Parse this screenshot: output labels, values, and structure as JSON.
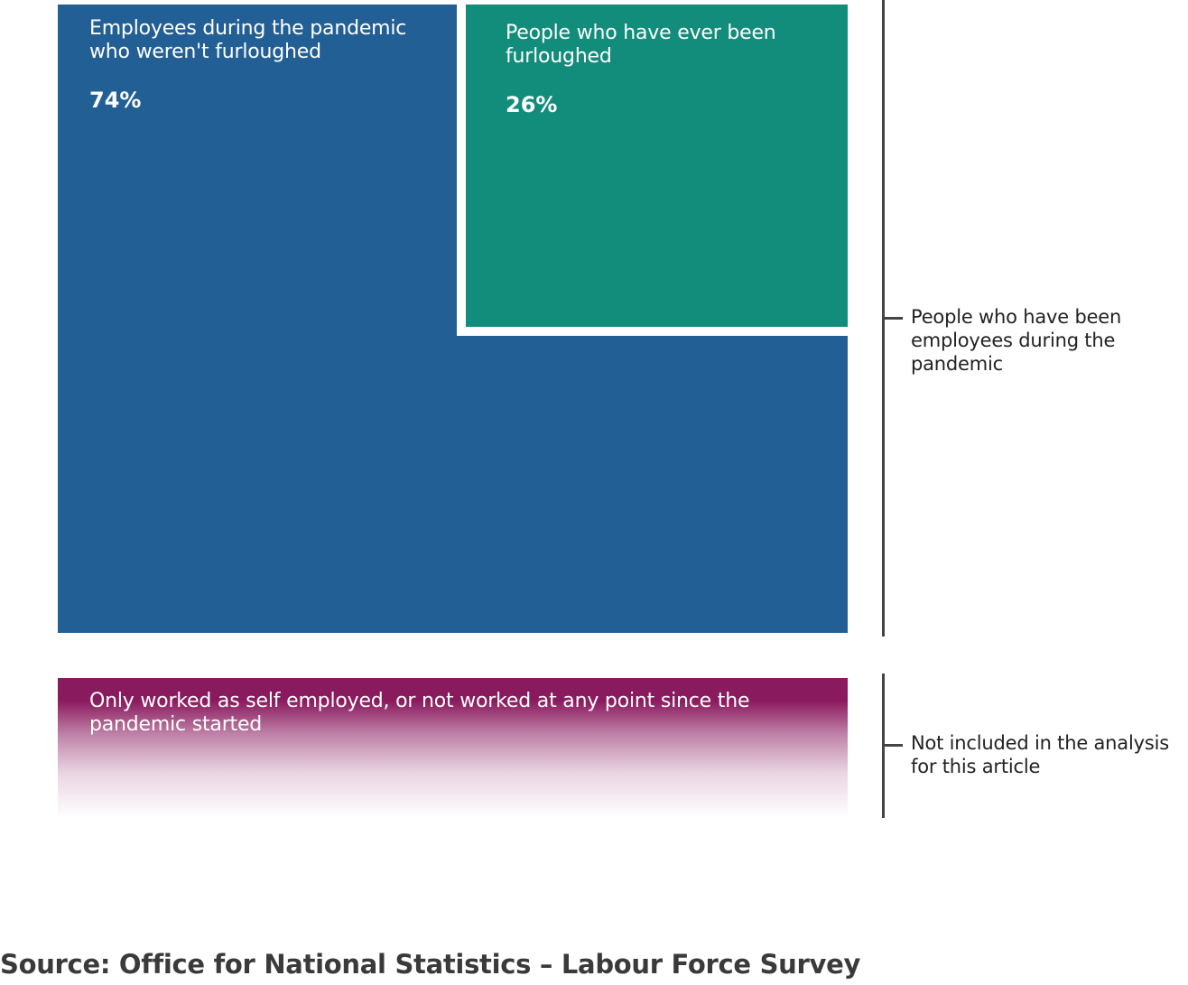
{
  "blocks": {
    "not_furloughed": {
      "label": "Employees during the pandemic who weren't furloughed",
      "percent": "74%",
      "value": 74,
      "color": "#225f94"
    },
    "furloughed": {
      "label": "People who have ever been furloughed",
      "percent": "26%",
      "value": 26,
      "color": "#128c7b"
    },
    "excluded": {
      "label": "Only worked as self employed, or not worked at any point since the pandemic started",
      "color": "#8a1a5e"
    }
  },
  "brackets": {
    "employees": {
      "label": "People who have been employees during the pandemic"
    },
    "excluded": {
      "label": "Not included in the analysis for this article"
    },
    "color": "#444444"
  },
  "source": "Source: Office for National Statistics – Labour Force Survey",
  "text_colors": {
    "on_block": "#ffffff",
    "body": "#222222",
    "source": "#3a3a3a"
  }
}
